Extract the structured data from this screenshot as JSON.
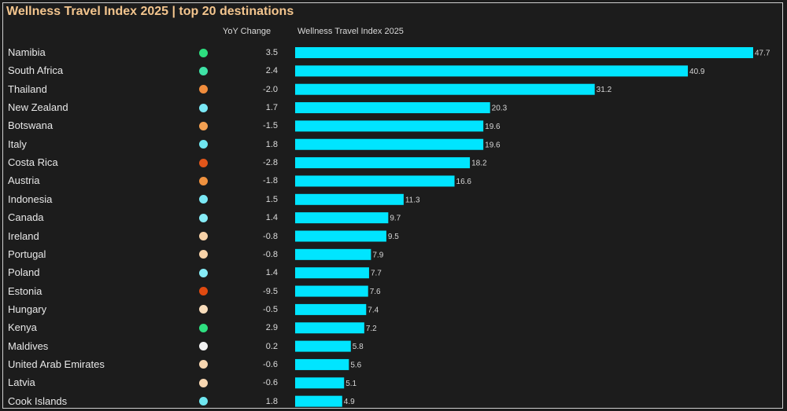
{
  "chart_data": {
    "type": "bar",
    "orientation": "horizontal",
    "title": "Wellness Travel Index 2025 | top 20 destinations",
    "columns": {
      "yoy": "YoY Change",
      "index": "Wellness Travel Index 2025"
    },
    "bar_color": "#00e5ff",
    "xlim": [
      0,
      47.7
    ],
    "rows": [
      {
        "country": "Namibia",
        "yoy": "3.5",
        "value": 47.7,
        "dot": "#2ddf7f"
      },
      {
        "country": "South Africa",
        "yoy": "2.4",
        "value": 40.9,
        "dot": "#3fe3a6"
      },
      {
        "country": "Thailand",
        "yoy": "-2.0",
        "value": 31.2,
        "dot": "#f08c3c"
      },
      {
        "country": "New Zealand",
        "yoy": "1.7",
        "value": 20.3,
        "dot": "#7ae8f5"
      },
      {
        "country": "Botswana",
        "yoy": "-1.5",
        "value": 19.6,
        "dot": "#f3a052"
      },
      {
        "country": "Italy",
        "yoy": "1.8",
        "value": 19.6,
        "dot": "#6fe6f0"
      },
      {
        "country": "Costa Rica",
        "yoy": "-2.8",
        "value": 18.2,
        "dot": "#e2561a"
      },
      {
        "country": "Austria",
        "yoy": "-1.8",
        "value": 16.6,
        "dot": "#f0923f"
      },
      {
        "country": "Indonesia",
        "yoy": "1.5",
        "value": 11.3,
        "dot": "#7ae8f5"
      },
      {
        "country": "Canada",
        "yoy": "1.4",
        "value": 9.7,
        "dot": "#86ebf6"
      },
      {
        "country": "Ireland",
        "yoy": "-0.8",
        "value": 9.5,
        "dot": "#f7d2a8"
      },
      {
        "country": "Portugal",
        "yoy": "-0.8",
        "value": 7.9,
        "dot": "#f7d2a8"
      },
      {
        "country": "Poland",
        "yoy": "1.4",
        "value": 7.7,
        "dot": "#86ebf6"
      },
      {
        "country": "Estonia",
        "yoy": "-9.5",
        "value": 7.6,
        "dot": "#e04a10"
      },
      {
        "country": "Hungary",
        "yoy": "-0.5",
        "value": 7.4,
        "dot": "#f8dcbb"
      },
      {
        "country": "Kenya",
        "yoy": "2.9",
        "value": 7.2,
        "dot": "#2edf80"
      },
      {
        "country": "Maldives",
        "yoy": "0.2",
        "value": 5.8,
        "dot": "#f2f2f2"
      },
      {
        "country": "United Arab Emirates",
        "yoy": "-0.6",
        "value": 5.6,
        "dot": "#f7d6b0"
      },
      {
        "country": "Latvia",
        "yoy": "-0.6",
        "value": 5.1,
        "dot": "#f7d6b0"
      },
      {
        "country": "Cook Islands",
        "yoy": "1.8",
        "value": 4.9,
        "dot": "#6fe6f0"
      }
    ]
  }
}
